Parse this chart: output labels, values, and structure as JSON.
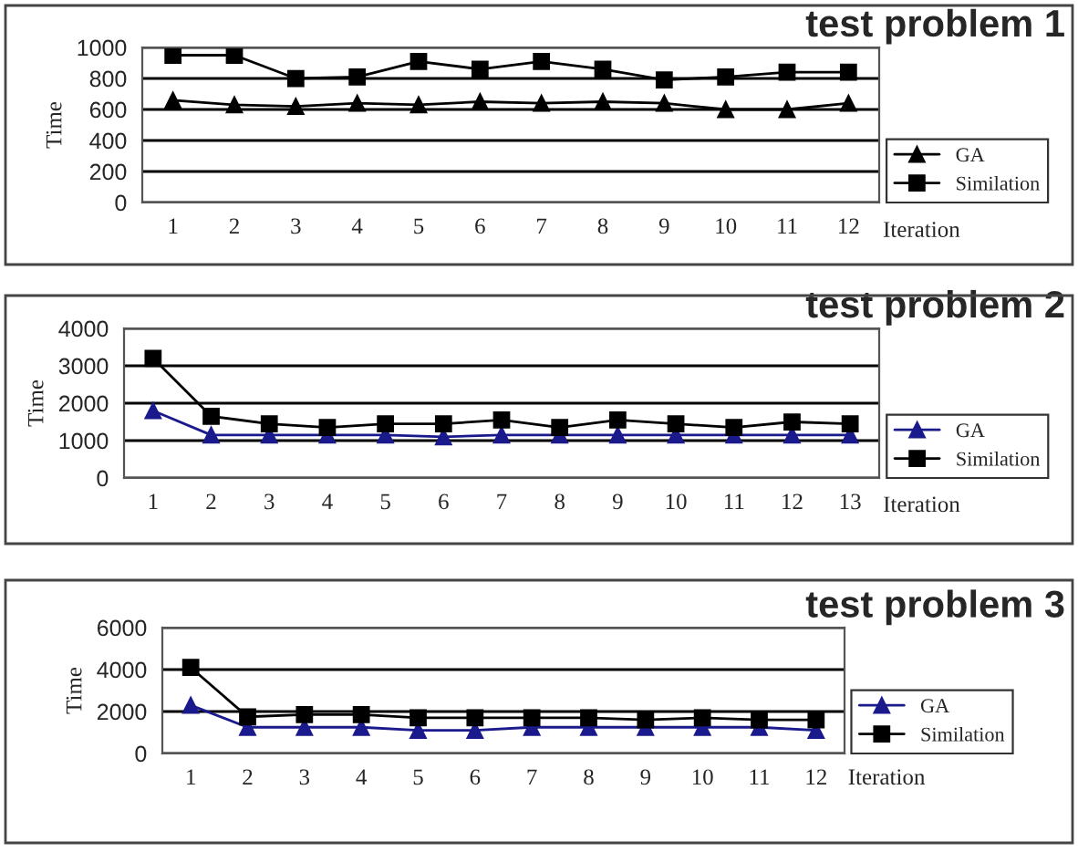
{
  "chart_data": [
    {
      "type": "line",
      "title": "test problem 1",
      "xlabel": "Iteration",
      "ylabel": "Time",
      "categories": [
        "1",
        "2",
        "3",
        "4",
        "5",
        "6",
        "7",
        "8",
        "9",
        "10",
        "11",
        "12"
      ],
      "ylim": [
        0,
        1000
      ],
      "yticks": [
        0,
        200,
        400,
        600,
        800,
        1000
      ],
      "grid": "y",
      "legend": "right",
      "series": [
        {
          "name": "GA",
          "color": "#000000",
          "marker": "triangle",
          "values": [
            660,
            630,
            620,
            640,
            630,
            650,
            640,
            650,
            640,
            600,
            600,
            640
          ]
        },
        {
          "name": "Similation",
          "color": "#000000",
          "marker": "square",
          "values": [
            950,
            950,
            800,
            810,
            910,
            860,
            910,
            860,
            790,
            810,
            840,
            840
          ]
        }
      ]
    },
    {
      "type": "line",
      "title": "test problem 2",
      "xlabel": "Iteration",
      "ylabel": "Time",
      "categories": [
        "1",
        "2",
        "3",
        "4",
        "5",
        "6",
        "7",
        "8",
        "9",
        "10",
        "11",
        "12",
        "13"
      ],
      "ylim": [
        0,
        4000
      ],
      "yticks": [
        0,
        1000,
        2000,
        3000,
        4000
      ],
      "grid": "y",
      "legend": "right",
      "series": [
        {
          "name": "GA",
          "color": "#1a1a8c",
          "marker": "triangle",
          "values": [
            1800,
            1150,
            1150,
            1150,
            1150,
            1100,
            1150,
            1150,
            1150,
            1150,
            1150,
            1150,
            1150
          ]
        },
        {
          "name": "Similation",
          "color": "#000000",
          "marker": "square",
          "values": [
            3200,
            1650,
            1450,
            1350,
            1450,
            1450,
            1550,
            1350,
            1550,
            1450,
            1350,
            1500,
            1450
          ]
        }
      ]
    },
    {
      "type": "line",
      "title": "test problem 3",
      "xlabel": "Iteration",
      "ylabel": "Time",
      "categories": [
        "1",
        "2",
        "3",
        "4",
        "5",
        "6",
        "7",
        "8",
        "9",
        "10",
        "11",
        "12"
      ],
      "ylim": [
        0,
        6000
      ],
      "yticks": [
        0,
        2000,
        4000,
        6000
      ],
      "grid": "y",
      "legend": "right",
      "series": [
        {
          "name": "GA",
          "color": "#1a1a8c",
          "marker": "triangle",
          "values": [
            2300,
            1250,
            1250,
            1250,
            1100,
            1100,
            1250,
            1250,
            1250,
            1250,
            1250,
            1100
          ]
        },
        {
          "name": "Similation",
          "color": "#000000",
          "marker": "square",
          "values": [
            4100,
            1750,
            1850,
            1850,
            1700,
            1700,
            1700,
            1700,
            1600,
            1700,
            1600,
            1600
          ]
        }
      ]
    }
  ]
}
